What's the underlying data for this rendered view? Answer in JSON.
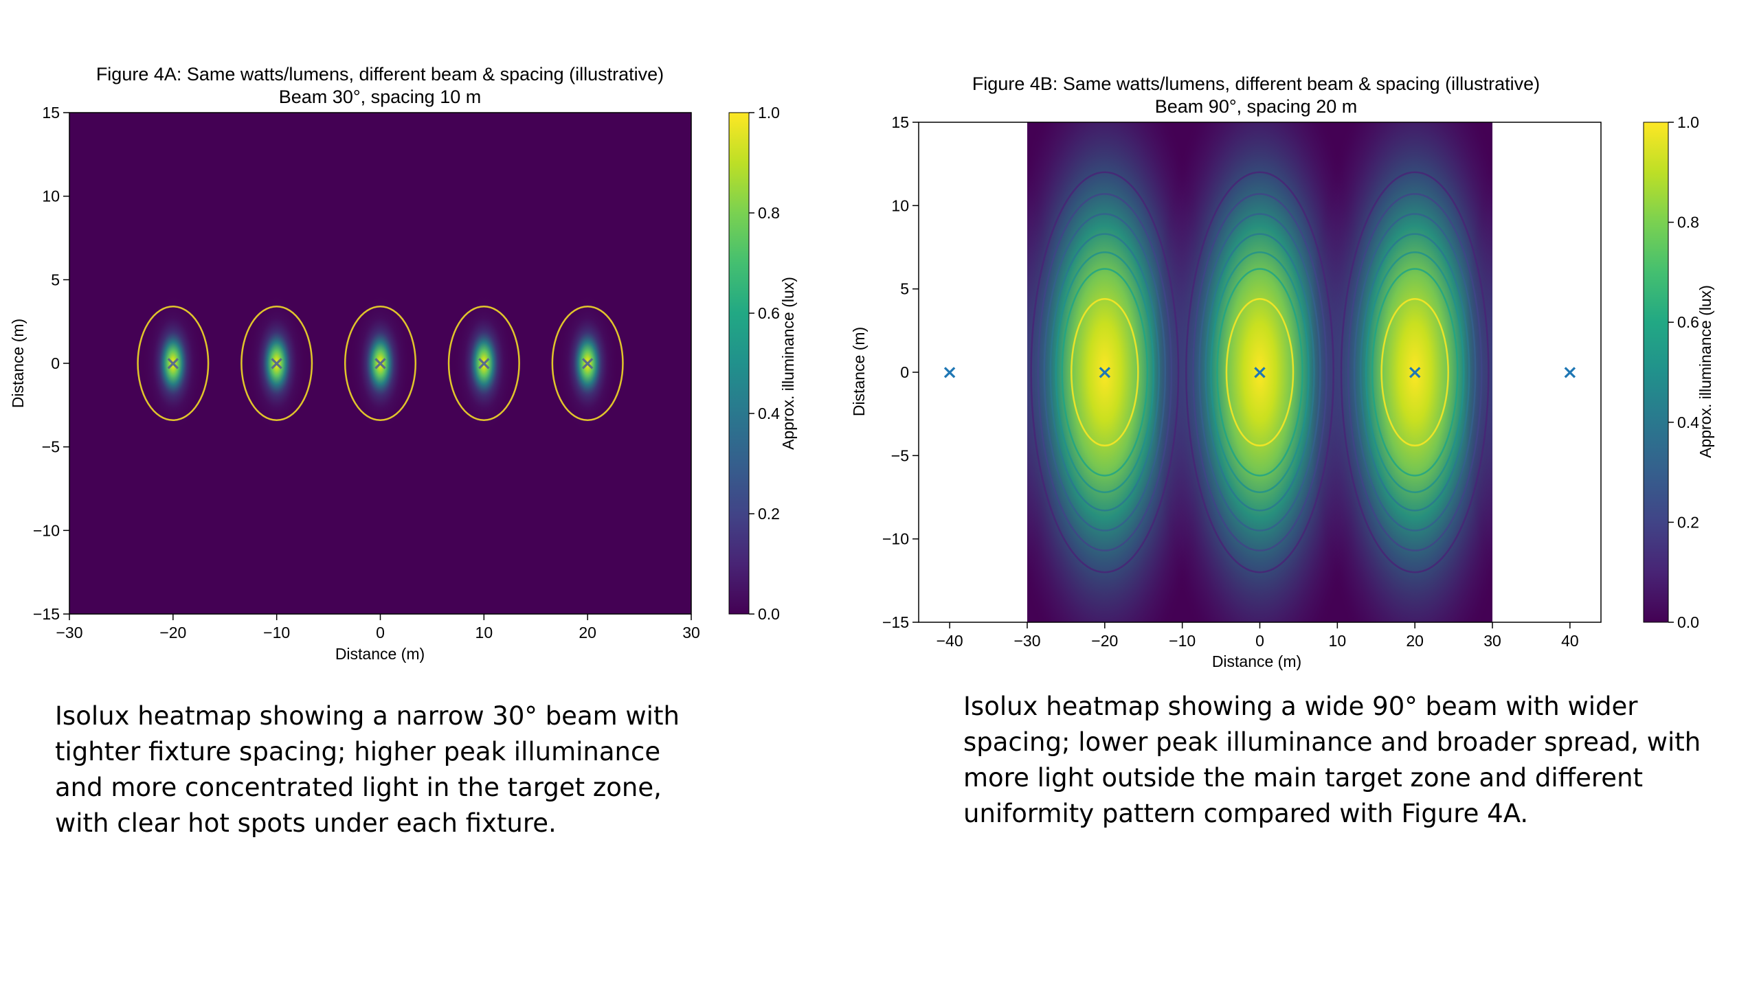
{
  "chart_data": [
    {
      "type": "heatmap",
      "title": "Figure 4A: Same watts/lumens, different beam & spacing (illustrative)",
      "subtitle": "Beam 30°, spacing 10 m",
      "xlabel": "Distance (m)",
      "ylabel": "Distance (m)",
      "xlim": [
        -30,
        30
      ],
      "ylim": [
        -15,
        15
      ],
      "xticks": [
        -30,
        -20,
        -10,
        0,
        10,
        20,
        30
      ],
      "yticks": [
        -15,
        -10,
        -5,
        0,
        5,
        10,
        15
      ],
      "xtick_labels": [
        "−30",
        "−20",
        "−10",
        "0",
        "10",
        "20",
        "30"
      ],
      "ytick_labels": [
        "−15",
        "−10",
        "−5",
        "0",
        "5",
        "10",
        "15"
      ],
      "data_extent": {
        "x": [
          -30,
          30
        ],
        "y": [
          -15,
          15
        ]
      },
      "fixtures_x": [
        -20,
        -10,
        0,
        10,
        20
      ],
      "fixture_marker": "×",
      "marker_color": "#5a6e8c",
      "spot_sigma": {
        "x": 1.0,
        "y": 1.4
      },
      "contours": [
        {
          "level": 0.05,
          "rx": 3.4,
          "ry": 3.4,
          "color": "#fde725"
        }
      ],
      "colorbar": {
        "label": "Approx. illuminance (lux)",
        "range": [
          0,
          1
        ],
        "ticks": [
          0.0,
          0.2,
          0.4,
          0.6,
          0.8,
          1.0
        ],
        "tick_labels": [
          "0.0",
          "0.2",
          "0.4",
          "0.6",
          "0.8",
          "1.0"
        ]
      }
    },
    {
      "type": "heatmap",
      "title": "Figure 4B: Same watts/lumens, different beam & spacing (illustrative)",
      "subtitle": "Beam 90°, spacing 20 m",
      "xlabel": "Distance (m)",
      "ylabel": "Distance (m)",
      "xlim": [
        -44,
        44
      ],
      "ylim": [
        -15,
        15
      ],
      "xticks": [
        -40,
        -30,
        -20,
        -10,
        0,
        10,
        20,
        30,
        40
      ],
      "yticks": [
        -15,
        -10,
        -5,
        0,
        5,
        10,
        15
      ],
      "xtick_labels": [
        "−40",
        "−30",
        "−20",
        "−10",
        "0",
        "10",
        "20",
        "30",
        "40"
      ],
      "ytick_labels": [
        "−15",
        "−10",
        "−5",
        "0",
        "5",
        "10",
        "15"
      ],
      "data_extent": {
        "x": [
          -30,
          30
        ],
        "y": [
          -15,
          15
        ]
      },
      "fixtures_x": [
        -40,
        -20,
        0,
        20,
        40
      ],
      "fixture_marker": "×",
      "marker_color": "#1f77b4",
      "spot_sigma": {
        "x": 4.6,
        "y": 6.5
      },
      "contours": [
        {
          "level": 0.8,
          "rx": 4.3,
          "ry": 4.4,
          "color": "#fde725"
        },
        {
          "level": 0.6,
          "rx": 5.5,
          "ry": 6.2,
          "color": "#21a585"
        },
        {
          "level": 0.5,
          "rx": 6.3,
          "ry": 7.2,
          "color": "#22908c"
        },
        {
          "level": 0.4,
          "rx": 7.0,
          "ry": 8.3,
          "color": "#2a788e"
        },
        {
          "level": 0.3,
          "rx": 7.8,
          "ry": 9.5,
          "color": "#355f8d"
        },
        {
          "level": 0.2,
          "rx": 8.6,
          "ry": 10.7,
          "color": "#414487"
        },
        {
          "level": 0.1,
          "rx": 9.5,
          "ry": 12.0,
          "color": "#482475"
        }
      ],
      "colorbar": {
        "label": "Approx. illuminance (lux)",
        "range": [
          0,
          1
        ],
        "ticks": [
          0.0,
          0.2,
          0.4,
          0.6,
          0.8,
          1.0
        ],
        "tick_labels": [
          "0.0",
          "0.2",
          "0.4",
          "0.6",
          "0.8",
          "1.0"
        ]
      }
    }
  ],
  "captions": {
    "left": [
      "Isolux heatmap showing a narrow 30° beam with",
      "tighter fixture spacing; higher peak illuminance",
      "and more concentrated light in the target zone,",
      "with clear hot spots under each fixture."
    ],
    "right": [
      "Isolux heatmap showing a wide 90° beam with wider",
      "spacing; lower peak illuminance and broader spread, with",
      "more light outside the main target zone and different",
      "uniformity pattern compared with Figure 4A."
    ]
  },
  "colors": {
    "background": "#440154",
    "text": "#000000"
  }
}
